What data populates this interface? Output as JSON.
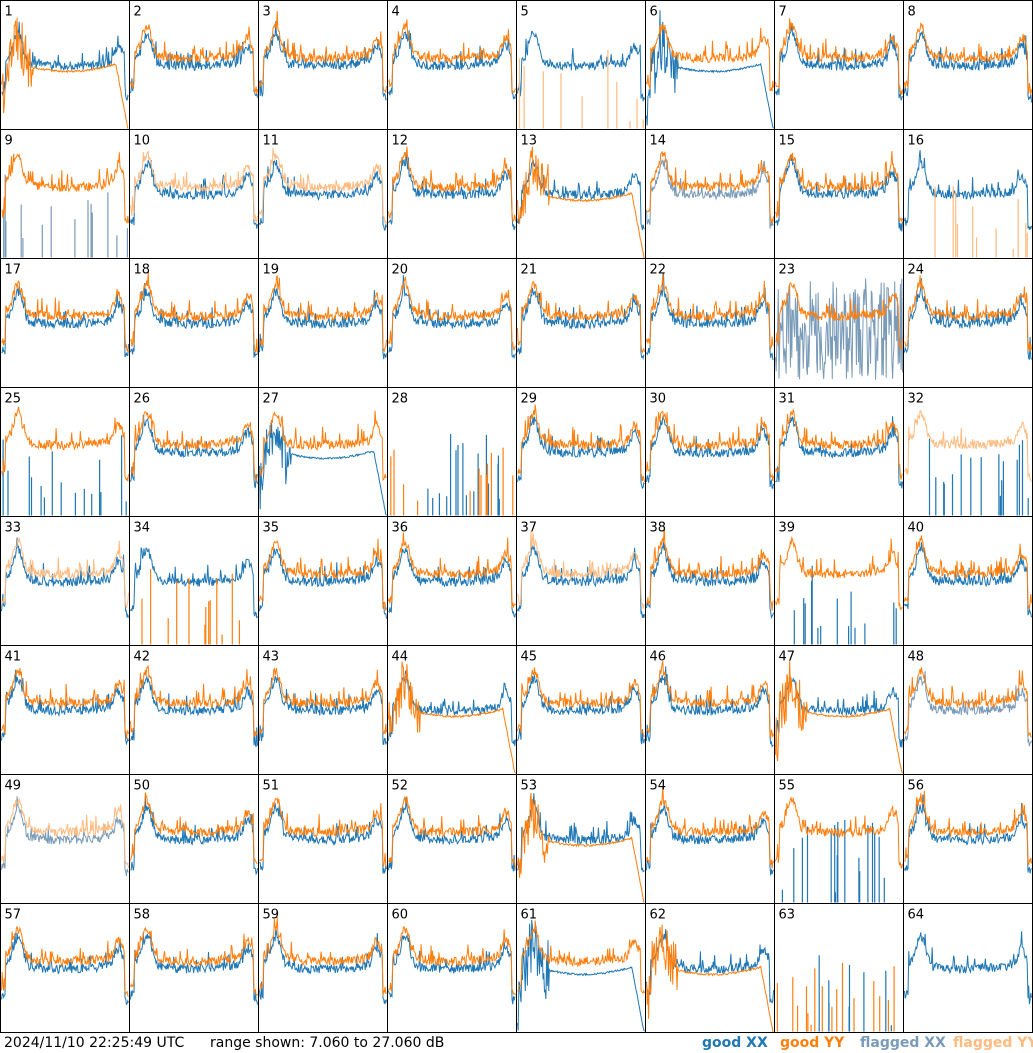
{
  "footer": {
    "timestamp": "2024/11/10 22:25:49 UTC",
    "range": "range shown: 7.060 to 27.060 dB"
  },
  "legend": [
    {
      "label": "good XX",
      "color": "#1f77b4"
    },
    {
      "label": "good YY",
      "color": "#ff7f0e"
    },
    {
      "label": "flagged XX",
      "color": "#7a9bb8"
    },
    {
      "label": "flagged YY",
      "color": "#ffbb80"
    }
  ],
  "chart_data": {
    "type": "line",
    "layout": "8x8 small multiples",
    "y_range_db": [
      7.06,
      27.06
    ],
    "panels": [
      {
        "id": "1",
        "xx": "good",
        "yy": "good",
        "yy_profile": "drop"
      },
      {
        "id": "2",
        "xx": "good",
        "yy": "good"
      },
      {
        "id": "3",
        "xx": "good",
        "yy": "good"
      },
      {
        "id": "4",
        "xx": "good",
        "yy": "good"
      },
      {
        "id": "5",
        "xx": "good",
        "yy": "flagged",
        "yy_profile": "spikes"
      },
      {
        "id": "6",
        "xx": "good",
        "yy": "good",
        "xx_profile": "drop"
      },
      {
        "id": "7",
        "xx": "good",
        "yy": "good"
      },
      {
        "id": "8",
        "xx": "good",
        "yy": "good"
      },
      {
        "id": "9",
        "xx": "flagged",
        "yy": "good",
        "xx_profile": "spikes"
      },
      {
        "id": "10",
        "xx": "good",
        "yy": "flagged"
      },
      {
        "id": "11",
        "xx": "good",
        "yy": "flagged"
      },
      {
        "id": "12",
        "xx": "good",
        "yy": "good"
      },
      {
        "id": "13",
        "xx": "good",
        "yy": "good",
        "yy_profile": "drop"
      },
      {
        "id": "14",
        "xx": "flagged",
        "yy": "good"
      },
      {
        "id": "15",
        "xx": "good",
        "yy": "good"
      },
      {
        "id": "16",
        "xx": "good",
        "yy": "flagged",
        "yy_profile": "spikes"
      },
      {
        "id": "17",
        "xx": "good",
        "yy": "good"
      },
      {
        "id": "18",
        "xx": "good",
        "yy": "good"
      },
      {
        "id": "19",
        "xx": "good",
        "yy": "good"
      },
      {
        "id": "20",
        "xx": "good",
        "yy": "good"
      },
      {
        "id": "21",
        "xx": "good",
        "yy": "good"
      },
      {
        "id": "22",
        "xx": "good",
        "yy": "good"
      },
      {
        "id": "23",
        "xx": "flagged",
        "yy": "good",
        "xx_profile": "noisy"
      },
      {
        "id": "24",
        "xx": "good",
        "yy": "good"
      },
      {
        "id": "25",
        "xx": "good",
        "yy": "good",
        "xx_profile": "spikes"
      },
      {
        "id": "26",
        "xx": "good",
        "yy": "good"
      },
      {
        "id": "27",
        "xx": "good",
        "yy": "good",
        "xx_profile": "drop"
      },
      {
        "id": "28",
        "xx": "good",
        "yy": "good",
        "xx_profile": "spikes",
        "yy_profile": "spikes"
      },
      {
        "id": "29",
        "xx": "good",
        "yy": "good"
      },
      {
        "id": "30",
        "xx": "good",
        "yy": "good"
      },
      {
        "id": "31",
        "xx": "good",
        "yy": "good"
      },
      {
        "id": "32",
        "xx": "good",
        "yy": "flagged",
        "xx_profile": "spikes"
      },
      {
        "id": "33",
        "xx": "good",
        "yy": "flagged"
      },
      {
        "id": "34",
        "xx": "good",
        "yy": "good",
        "yy_profile": "spikes"
      },
      {
        "id": "35",
        "xx": "good",
        "yy": "good"
      },
      {
        "id": "36",
        "xx": "good",
        "yy": "good"
      },
      {
        "id": "37",
        "xx": "good",
        "yy": "flagged"
      },
      {
        "id": "38",
        "xx": "good",
        "yy": "good"
      },
      {
        "id": "39",
        "xx": "good",
        "yy": "good",
        "xx_profile": "spikes"
      },
      {
        "id": "40",
        "xx": "good",
        "yy": "good"
      },
      {
        "id": "41",
        "xx": "good",
        "yy": "good"
      },
      {
        "id": "42",
        "xx": "good",
        "yy": "good"
      },
      {
        "id": "43",
        "xx": "good",
        "yy": "good"
      },
      {
        "id": "44",
        "xx": "good",
        "yy": "good",
        "yy_profile": "drop"
      },
      {
        "id": "45",
        "xx": "good",
        "yy": "good"
      },
      {
        "id": "46",
        "xx": "good",
        "yy": "good"
      },
      {
        "id": "47",
        "xx": "good",
        "yy": "good",
        "yy_profile": "drop"
      },
      {
        "id": "48",
        "xx": "flagged",
        "yy": "good"
      },
      {
        "id": "49",
        "xx": "flagged",
        "yy": "flagged"
      },
      {
        "id": "50",
        "xx": "good",
        "yy": "good"
      },
      {
        "id": "51",
        "xx": "good",
        "yy": "good"
      },
      {
        "id": "52",
        "xx": "good",
        "yy": "good"
      },
      {
        "id": "53",
        "xx": "good",
        "yy": "good",
        "yy_profile": "drop"
      },
      {
        "id": "54",
        "xx": "good",
        "yy": "good"
      },
      {
        "id": "55",
        "xx": "good",
        "yy": "good",
        "xx_profile": "spikes"
      },
      {
        "id": "56",
        "xx": "good",
        "yy": "good"
      },
      {
        "id": "57",
        "xx": "good",
        "yy": "good"
      },
      {
        "id": "58",
        "xx": "good",
        "yy": "good"
      },
      {
        "id": "59",
        "xx": "good",
        "yy": "good"
      },
      {
        "id": "60",
        "xx": "good",
        "yy": "good"
      },
      {
        "id": "61",
        "xx": "good",
        "yy": "good",
        "xx_profile": "drop"
      },
      {
        "id": "62",
        "xx": "good",
        "yy": "good",
        "yy_profile": "drop"
      },
      {
        "id": "63",
        "xx": "good",
        "yy": "good",
        "xx_profile": "spikes",
        "yy_profile": "spikes"
      },
      {
        "id": "64",
        "xx": "good",
        "yy": "none"
      }
    ]
  }
}
